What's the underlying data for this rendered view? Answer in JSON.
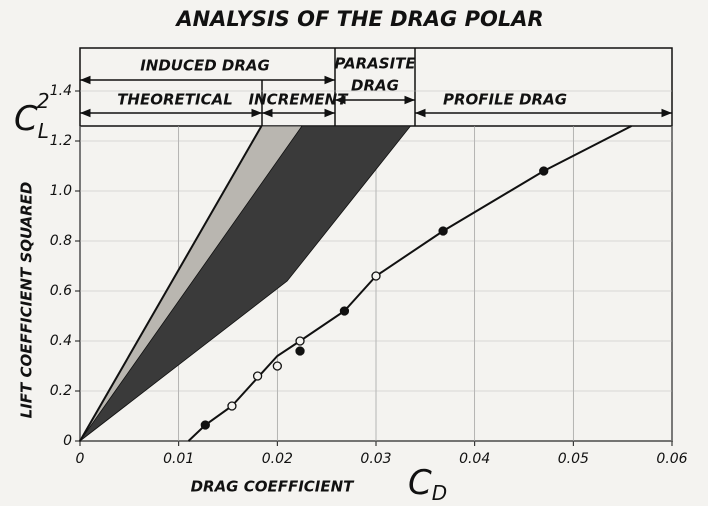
{
  "chart_data": {
    "type": "line",
    "title": "ANALYSIS OF THE DRAG POLAR",
    "xlabel": "DRAG COEFFICIENT",
    "ylabel": "LIFT COEFFICIENT SQUARED",
    "y_symbol": {
      "base": "C",
      "sub": "L",
      "sup": "2"
    },
    "x_symbol": {
      "base": "C",
      "sub": "D"
    },
    "header": {
      "induced": "INDUCED DRAG",
      "parasite": [
        "PARASITE",
        "DRAG"
      ],
      "theoretical": "THEORETICAL",
      "increment": "INCREMENT",
      "profile": "PROFILE DRAG"
    },
    "xlim": [
      0,
      0.06
    ],
    "xticks": [
      0,
      0.01,
      0.02,
      0.03,
      0.04,
      0.05,
      0.06
    ],
    "ylim": [
      0,
      1.4
    ],
    "yticks": [
      0,
      0.2,
      0.4,
      0.6,
      0.8,
      {
        "value": 1,
        "label": "1.0"
      },
      1.2,
      1.4
    ],
    "grid": true,
    "series": [
      {
        "kind": "area",
        "color": "#b9b6b0",
        "x": [
          0,
          0.0184,
          0.0225,
          0.012
        ],
        "values": [
          0,
          1.26,
          1.26,
          0.55
        ]
      },
      {
        "kind": "area",
        "color": "#3a3a3a",
        "x": [
          0,
          0.0225,
          0.0335,
          0.021
        ],
        "values": [
          0,
          1.26,
          1.26,
          0.64
        ]
      },
      {
        "kind": "line",
        "color": "#111111",
        "x": [
          0,
          0.0184
        ],
        "values": [
          0,
          1.26
        ]
      },
      {
        "kind": "line",
        "color": "#111111",
        "x": [
          0.011,
          0.0127,
          0.0154,
          0.02,
          0.0223,
          0.0268,
          0.03,
          0.0368,
          0.047,
          0.0559
        ],
        "values": [
          0,
          0.064,
          0.14,
          0.34,
          0.4,
          0.52,
          0.66,
          0.84,
          1.08,
          1.26
        ]
      },
      {
        "kind": "points",
        "fill": "#111111",
        "color": "#111111",
        "x": [
          0.0127,
          0.0223,
          0.0268,
          0.0368,
          0.047
        ],
        "values": [
          0.064,
          0.36,
          0.52,
          0.84,
          1.08
        ]
      },
      {
        "kind": "points",
        "fill": "#f4f3f0",
        "color": "#111111",
        "x": [
          0.0154,
          0.018,
          0.02,
          0.0223,
          0.03
        ],
        "values": [
          0.14,
          0.26,
          0.3,
          0.4,
          0.66
        ]
      }
    ]
  }
}
